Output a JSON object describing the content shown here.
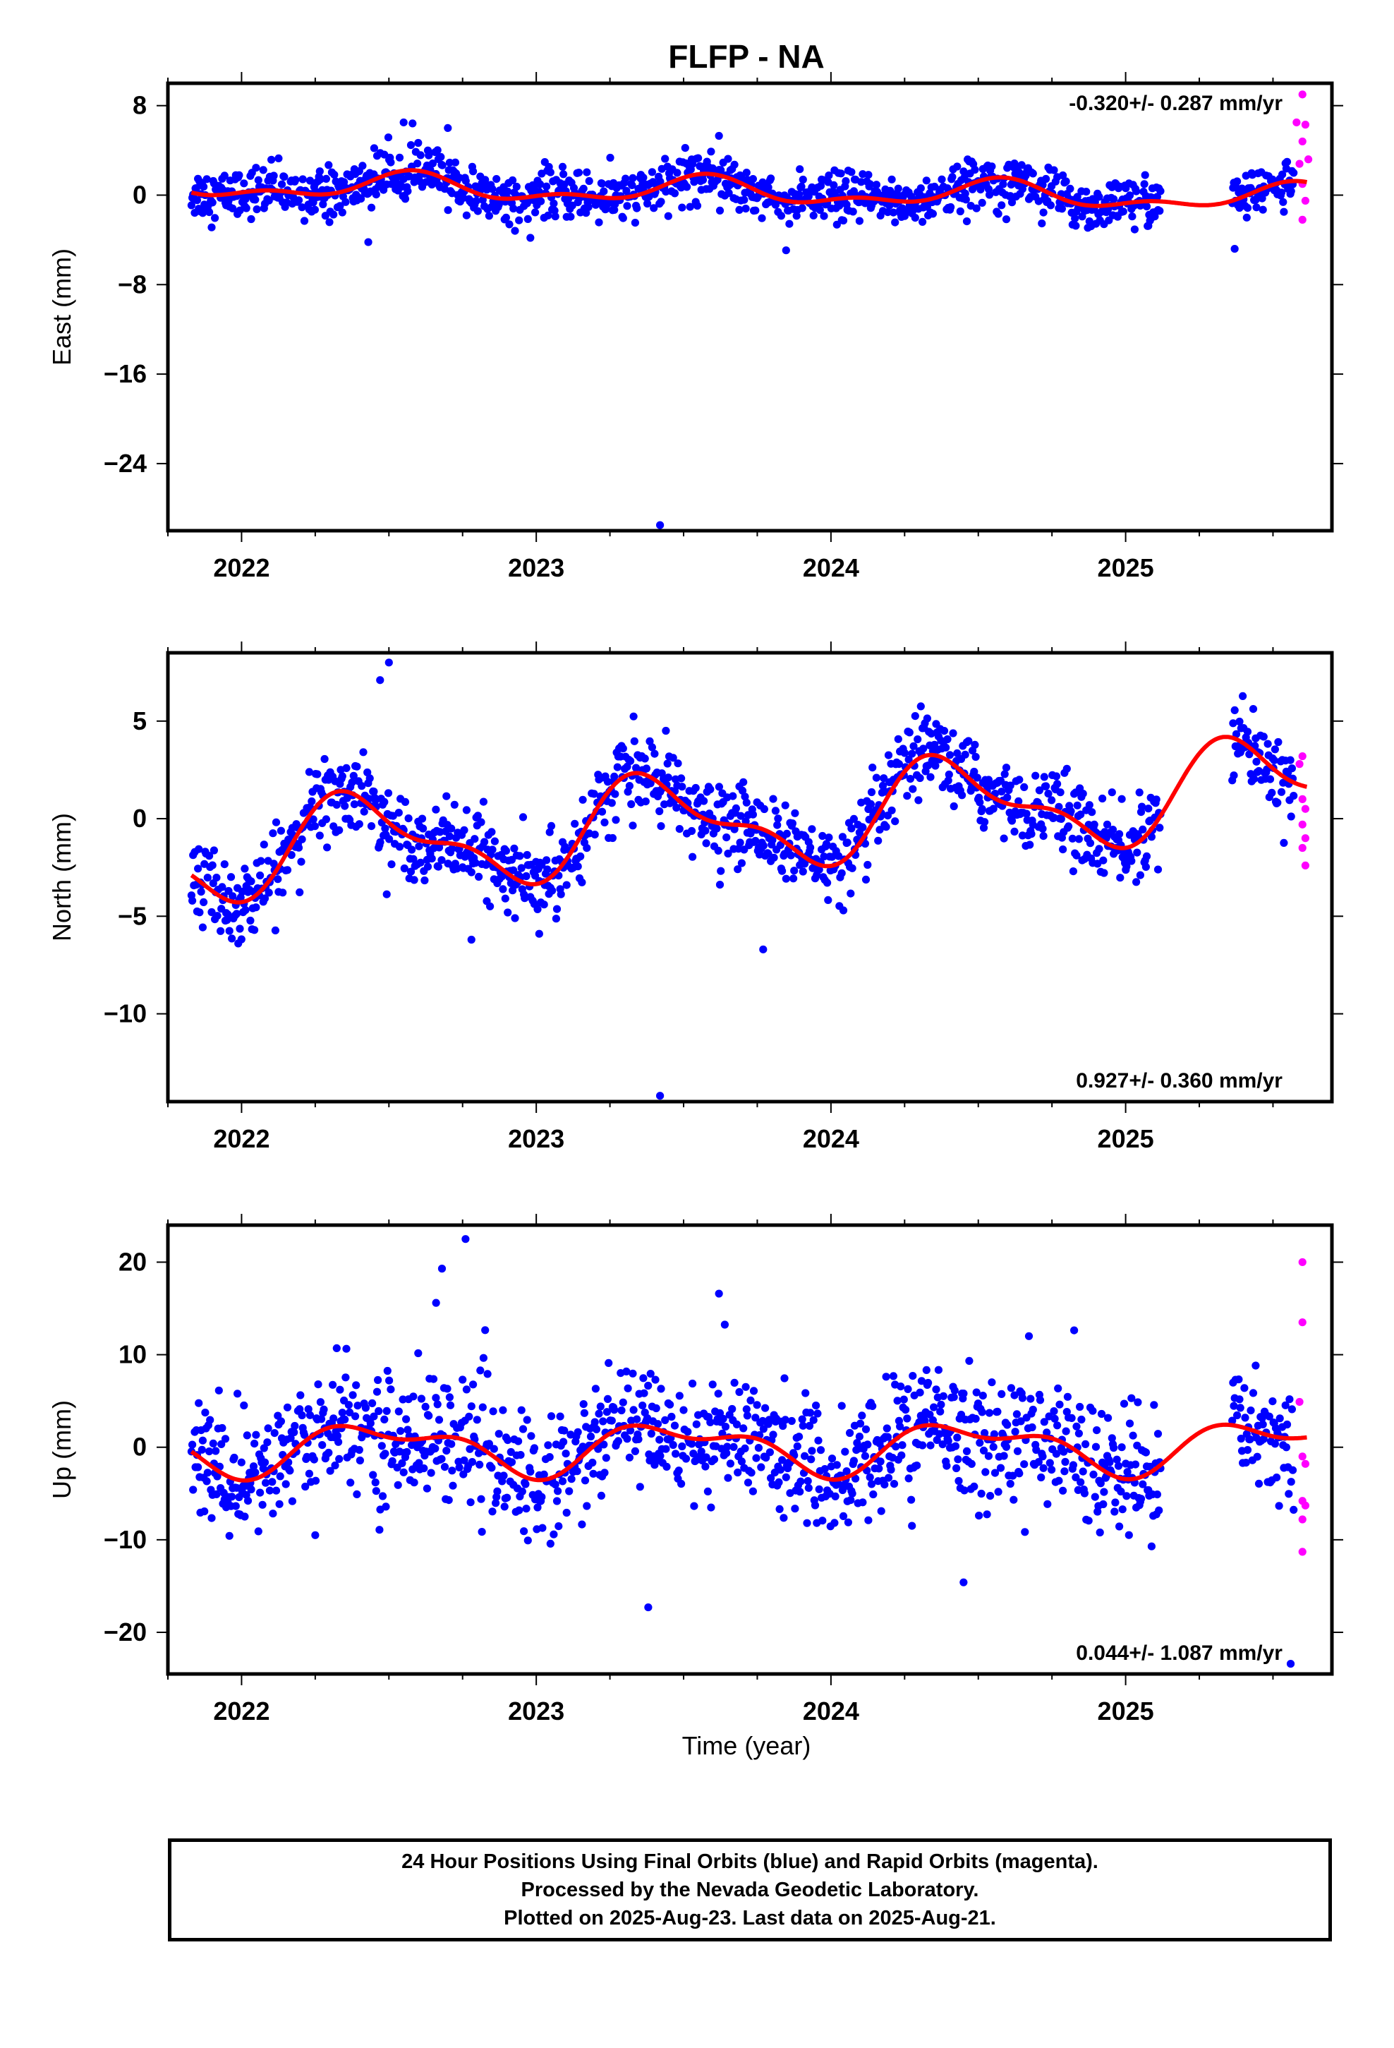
{
  "chart_data": {
    "type": "scatter",
    "title": "FLFP - NA",
    "xlabel": "Time (year)",
    "xticks": [
      "2022",
      "2023",
      "2024",
      "2025"
    ],
    "xlim": [
      2021.75,
      2025.7
    ],
    "series_colors": {
      "final": "#0000ff",
      "rapid": "#ff00ff",
      "model": "#ff0000"
    },
    "panels": [
      {
        "name": "east",
        "ylabel": "East (mm)",
        "ylim": [
          -30,
          10
        ],
        "yticks": [
          8,
          0,
          -8,
          -16,
          -24
        ],
        "rate_text": "-0.320+/- 0.287 mm/yr",
        "rate_position": "top-right",
        "model": {
          "offset": 0.3,
          "trend": -0.32,
          "annual_cos": -0.9,
          "annual_sin": -0.4,
          "semi_cos": 0.3,
          "semi_sin": 0.5,
          "noise": 1.1
        },
        "final_range": [
          2021.83,
          2025.57
        ],
        "gap": [
          2025.12,
          2025.36
        ],
        "outliers": [
          [
            2022.55,
            6.5
          ],
          [
            2022.7,
            6.0
          ],
          [
            2022.45,
            4.2
          ],
          [
            2023.62,
            5.3
          ],
          [
            2023.42,
            -29.5
          ],
          [
            2025.37,
            -4.8
          ],
          [
            2022.43,
            -4.2
          ]
        ],
        "rapid": [
          [
            2025.6,
            9.0
          ],
          [
            2025.58,
            6.5
          ],
          [
            2025.61,
            6.3
          ],
          [
            2025.6,
            4.8
          ],
          [
            2025.62,
            3.2
          ],
          [
            2025.59,
            2.8
          ],
          [
            2025.6,
            1.0
          ],
          [
            2025.61,
            -0.5
          ],
          [
            2025.6,
            -2.2
          ]
        ]
      },
      {
        "name": "north",
        "ylabel": "North (mm)",
        "ylim": [
          -14.5,
          8.5
        ],
        "yticks": [
          5,
          0,
          -5,
          -10
        ],
        "rate_text": "0.927+/- 0.360 mm/yr",
        "rate_position": "bottom-right",
        "model": {
          "offset": -0.1,
          "trend": 0.927,
          "annual_cos": -1.8,
          "annual_sin": 1.2,
          "semi_cos": -0.8,
          "semi_sin": -0.5,
          "noise": 1.0
        },
        "final_range": [
          2021.83,
          2025.57
        ],
        "gap": [
          2025.12,
          2025.36
        ],
        "outliers": [
          [
            2022.5,
            8.0
          ],
          [
            2022.47,
            7.1
          ],
          [
            2023.42,
            -14.2
          ],
          [
            2023.77,
            -6.7
          ],
          [
            2023.01,
            -5.9
          ],
          [
            2022.78,
            -6.2
          ]
        ],
        "rapid": [
          [
            2025.6,
            3.2
          ],
          [
            2025.59,
            2.8
          ],
          [
            2025.6,
            1.0
          ],
          [
            2025.61,
            0.5
          ],
          [
            2025.6,
            -0.3
          ],
          [
            2025.61,
            -1.0
          ],
          [
            2025.6,
            -1.5
          ],
          [
            2025.61,
            -2.4
          ]
        ]
      },
      {
        "name": "up",
        "ylabel": "Up (mm)",
        "ylim": [
          -24.5,
          24
        ],
        "yticks": [
          20,
          10,
          0,
          -10,
          -20
        ],
        "rate_text": "0.044+/- 1.087 mm/yr",
        "rate_position": "bottom-right",
        "model": {
          "offset": 0.0,
          "trend": 0.044,
          "annual_cos": -2.3,
          "annual_sin": 0.3,
          "semi_cos": -1.2,
          "semi_sin": -0.4,
          "noise": 3.4
        },
        "final_range": [
          2021.83,
          2025.57
        ],
        "gap": [
          2025.12,
          2025.36
        ],
        "outliers": [
          [
            2022.76,
            22.5
          ],
          [
            2022.68,
            19.3
          ],
          [
            2022.66,
            15.6
          ],
          [
            2023.62,
            16.6
          ],
          [
            2023.38,
            -17.3
          ],
          [
            2022.25,
            -9.5
          ],
          [
            2025.56,
            -23.4
          ],
          [
            2024.45,
            -14.6
          ]
        ],
        "rapid": [
          [
            2025.6,
            20.0
          ],
          [
            2025.6,
            13.5
          ],
          [
            2025.59,
            4.9
          ],
          [
            2025.6,
            -1.0
          ],
          [
            2025.61,
            -1.8
          ],
          [
            2025.6,
            -5.8
          ],
          [
            2025.61,
            -6.3
          ],
          [
            2025.6,
            -7.8
          ],
          [
            2025.6,
            -11.3
          ]
        ]
      }
    ],
    "grid": false,
    "legend": "none"
  },
  "footer": {
    "line1": "24 Hour Positions Using Final Orbits (blue) and Rapid Orbits (magenta).",
    "line2": "Processed by the Nevada Geodetic Laboratory.",
    "line3": "Plotted on 2025-Aug-23. Last data on 2025-Aug-21."
  }
}
